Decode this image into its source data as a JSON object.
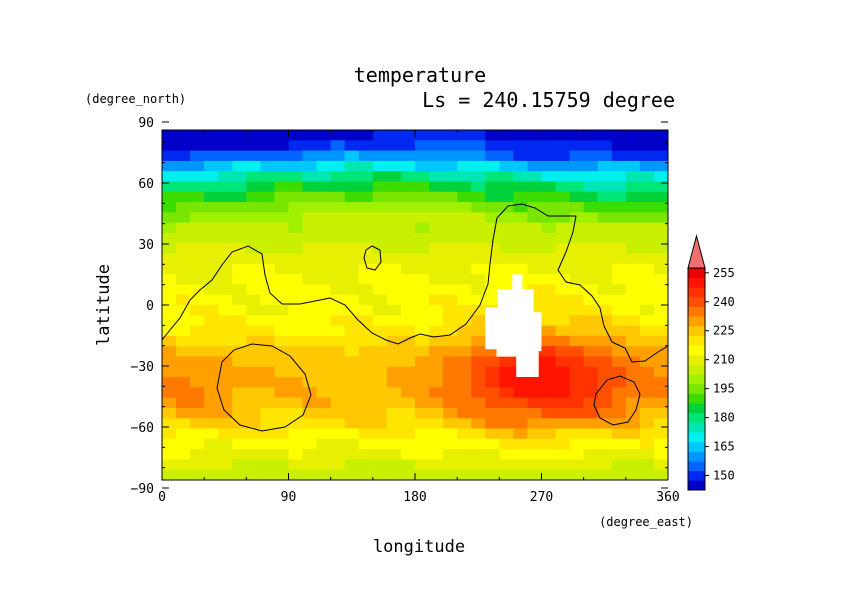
{
  "chart_data": {
    "type": "heatmap",
    "title": "temperature",
    "subtitle": "Ls = 240.15759 degree",
    "xlabel": "longitude",
    "ylabel": "latitude",
    "x_unit": "(degree_east)",
    "y_unit": "(degree_north)",
    "xlim": [
      0,
      360
    ],
    "ylim": [
      -90,
      90
    ],
    "x_ticks": [
      "0",
      "90",
      "180",
      "270",
      "360"
    ],
    "y_ticks": [
      "90",
      "60",
      "30",
      "0",
      "−30",
      "−60",
      "−90"
    ],
    "colorbar": {
      "labels": [
        "255",
        "240",
        "225",
        "210",
        "195",
        "180",
        "165",
        "150"
      ],
      "levels": [
        145,
        150,
        155,
        160,
        165,
        170,
        175,
        180,
        185,
        190,
        195,
        200,
        205,
        210,
        215,
        220,
        225,
        230,
        235,
        240,
        245,
        250,
        255,
        260
      ],
      "colors": [
        "#0000c8",
        "#0028f0",
        "#0064ff",
        "#0096ff",
        "#00c8ff",
        "#00f0f0",
        "#00e6b4",
        "#00e678",
        "#00d23c",
        "#3cdc00",
        "#78e600",
        "#a0f000",
        "#c8f000",
        "#e6f000",
        "#ffff00",
        "#ffe600",
        "#ffc800",
        "#ffa000",
        "#ff7800",
        "#ff5000",
        "#ff3200",
        "#ff1400",
        "#e60000",
        "#f07070"
      ]
    },
    "latitudes": [
      87.5,
      82.5,
      77.5,
      72.5,
      67.5,
      62.5,
      57.5,
      52.5,
      47.5,
      42.5,
      37.5,
      32.5,
      27.5,
      22.5,
      17.5,
      12.5,
      7.5,
      2.5,
      -2.5,
      -7.5,
      -12.5,
      -17.5,
      -22.5,
      -27.5,
      -32.5,
      -37.5,
      -42.5,
      -47.5,
      -52.5,
      -57.5,
      -62.5,
      -67.5,
      -72.5,
      -77.5,
      -82.5,
      -87.5
    ],
    "longitudes": [
      0,
      20,
      40,
      60,
      80,
      100,
      120,
      140,
      160,
      180,
      200,
      220,
      240,
      260,
      280,
      300,
      320,
      340,
      360
    ],
    "profile_values": [
      145,
      148,
      152,
      158,
      168,
      178,
      186,
      192,
      198,
      203,
      206,
      208,
      210,
      213,
      214,
      215,
      216,
      217,
      217,
      218,
      220,
      223,
      226,
      228,
      229,
      229,
      229,
      228,
      226,
      223,
      219,
      216,
      213,
      210,
      208,
      208
    ],
    "hot_spot": {
      "lon": 265,
      "lat": -35,
      "peak_value": 253
    },
    "missing_region": {
      "lon_range": [
        230,
        270
      ],
      "lat_range": [
        -35,
        10
      ]
    }
  }
}
